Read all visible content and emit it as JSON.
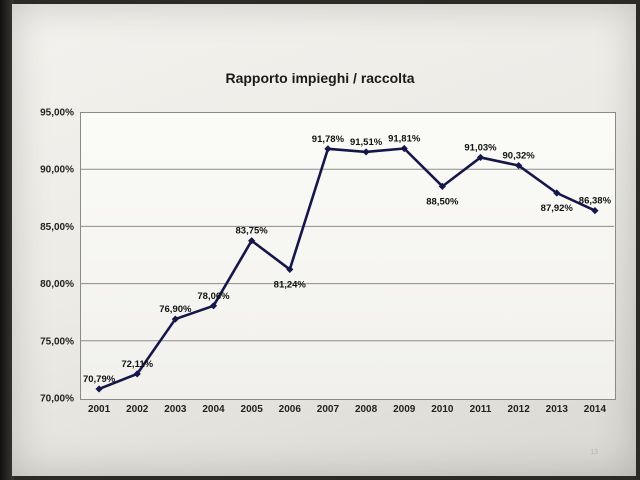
{
  "page_number": "13",
  "chart_data": {
    "type": "line",
    "title": "Rapporto impieghi / raccolta",
    "xlabel": "",
    "ylabel": "",
    "categories": [
      "2001",
      "2002",
      "2003",
      "2004",
      "2005",
      "2006",
      "2007",
      "2008",
      "2009",
      "2010",
      "2011",
      "2012",
      "2013",
      "2014"
    ],
    "values": [
      70.79,
      72.11,
      76.9,
      78.06,
      83.75,
      81.24,
      91.78,
      91.51,
      91.81,
      88.5,
      91.03,
      90.32,
      87.92,
      86.38
    ],
    "data_labels": [
      "70,79%",
      "72,11%",
      "76,90%",
      "78,06%",
      "83,75%",
      "81,24%",
      "91,78%",
      "91,51%",
      "91,81%",
      "88,50%",
      "91,03%",
      "90,32%",
      "87,92%",
      "86,38%"
    ],
    "ylim": [
      70,
      95
    ],
    "yticks": [
      70,
      75,
      80,
      85,
      90,
      95
    ],
    "ytick_labels": [
      "70,00%",
      "75,00%",
      "80,00%",
      "85,00%",
      "90,00%",
      "95,00%"
    ],
    "grid": true,
    "line_color": "#15174a",
    "marker": "diamond"
  }
}
